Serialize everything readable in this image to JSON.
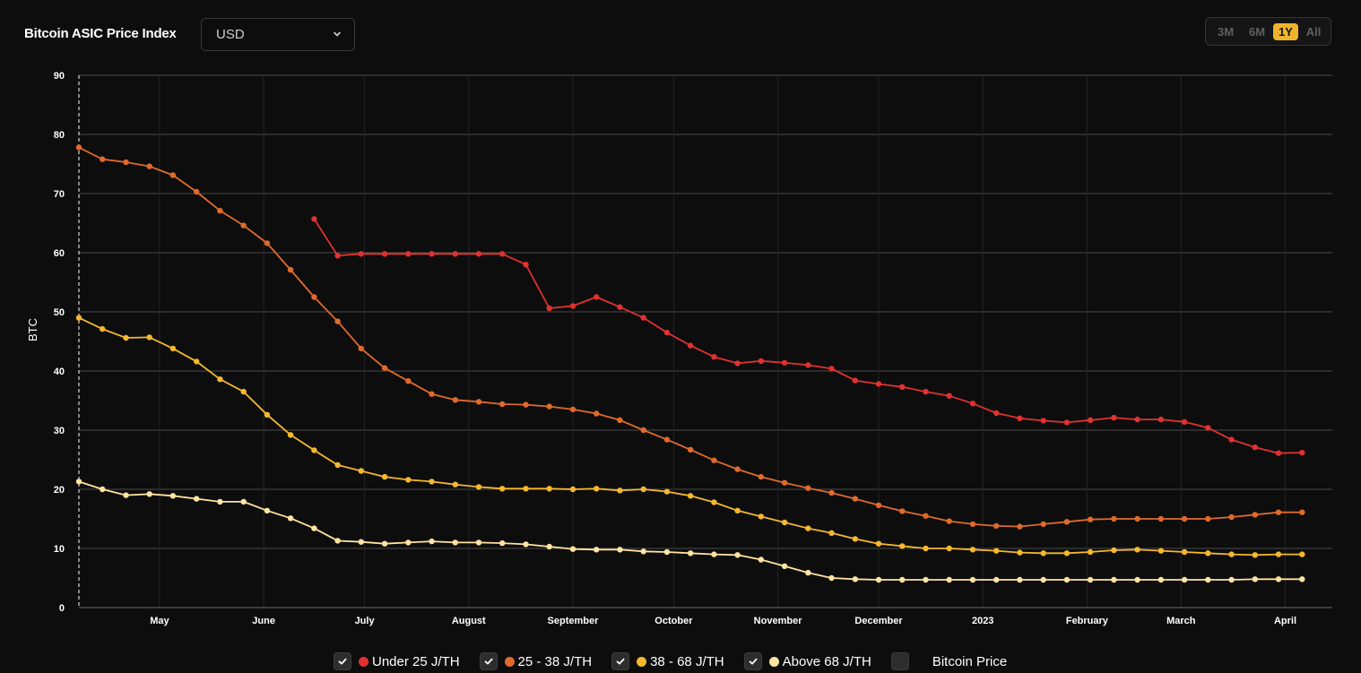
{
  "header": {
    "title": "Bitcoin ASIC Price Index",
    "currency": "USD"
  },
  "time_ranges": [
    {
      "label": "3M",
      "active": false
    },
    {
      "label": "6M",
      "active": false
    },
    {
      "label": "1Y",
      "active": true
    },
    {
      "label": "All",
      "active": false
    }
  ],
  "icons": {
    "currency_dropdown": "chevron-down-icon",
    "legend_checkbox": "checkmark-icon"
  },
  "colors": {
    "accent": "#f0b32b",
    "background": "#0d0d0d"
  },
  "legend": [
    {
      "label": "Under 25 J/TH",
      "color": "#e03131",
      "checked": true
    },
    {
      "label": "25 - 38 J/TH",
      "color": "#e06a2c",
      "checked": true
    },
    {
      "label": "38 - 68 J/TH",
      "color": "#f5b82e",
      "checked": true
    },
    {
      "label": "Above 68 J/TH",
      "color": "#ffe3a0",
      "checked": true
    },
    {
      "label": "Bitcoin Price",
      "color": "",
      "checked": false
    }
  ],
  "chart_data": {
    "type": "line",
    "ylabel": "BTC",
    "ylim": [
      0,
      90
    ],
    "yticks": [
      0,
      10,
      20,
      30,
      40,
      50,
      60,
      70,
      80,
      90
    ],
    "xlim": [
      "2022-04-07",
      "2023-04-15"
    ],
    "xticks": [
      {
        "label": "May",
        "date": "2022-05-01"
      },
      {
        "label": "June",
        "date": "2022-06-01"
      },
      {
        "label": "July",
        "date": "2022-07-01"
      },
      {
        "label": "August",
        "date": "2022-08-01"
      },
      {
        "label": "September",
        "date": "2022-09-01"
      },
      {
        "label": "October",
        "date": "2022-10-01"
      },
      {
        "label": "November",
        "date": "2022-11-01"
      },
      {
        "label": "December",
        "date": "2022-12-01"
      },
      {
        "label": "2023",
        "date": "2023-01-01"
      },
      {
        "label": "February",
        "date": "2023-02-01"
      },
      {
        "label": "March",
        "date": "2023-03-01"
      },
      {
        "label": "April",
        "date": "2023-04-01"
      }
    ],
    "grid": true,
    "legend_position": "bottom",
    "x": [
      "2022-04-07",
      "2022-04-14",
      "2022-04-21",
      "2022-04-28",
      "2022-05-05",
      "2022-05-12",
      "2022-05-19",
      "2022-05-26",
      "2022-06-02",
      "2022-06-09",
      "2022-06-16",
      "2022-06-23",
      "2022-06-30",
      "2022-07-07",
      "2022-07-14",
      "2022-07-21",
      "2022-07-28",
      "2022-08-04",
      "2022-08-11",
      "2022-08-18",
      "2022-08-25",
      "2022-09-01",
      "2022-09-08",
      "2022-09-15",
      "2022-09-22",
      "2022-09-29",
      "2022-10-06",
      "2022-10-13",
      "2022-10-20",
      "2022-10-27",
      "2022-11-03",
      "2022-11-10",
      "2022-11-17",
      "2022-11-24",
      "2022-12-01",
      "2022-12-08",
      "2022-12-15",
      "2022-12-22",
      "2022-12-29",
      "2023-01-05",
      "2023-01-12",
      "2023-01-19",
      "2023-01-26",
      "2023-02-02",
      "2023-02-09",
      "2023-02-16",
      "2023-02-23",
      "2023-03-02",
      "2023-03-09",
      "2023-03-16",
      "2023-03-23",
      "2023-03-30",
      "2023-04-06",
      "2023-04-13"
    ],
    "series": [
      {
        "name": "Under 25 J/TH",
        "color": "#e03131",
        "values": [
          null,
          null,
          null,
          null,
          null,
          null,
          null,
          null,
          null,
          null,
          65.7,
          59.5,
          59.8,
          59.8,
          59.8,
          59.8,
          59.8,
          59.8,
          59.8,
          58.0,
          50.6,
          51.0,
          52.5,
          50.8,
          49.0,
          46.5,
          44.3,
          42.4,
          41.3,
          41.7,
          41.4,
          41.0,
          40.4,
          38.4,
          37.8,
          37.3,
          36.5,
          35.8,
          34.5,
          32.9,
          32.0,
          31.6,
          31.3,
          31.7,
          32.1,
          31.8,
          31.8,
          31.4,
          30.4,
          28.4,
          27.1,
          26.1,
          26.2,
          null
        ]
      },
      {
        "name": "25 - 38 J/TH",
        "color": "#e06a2c",
        "values": [
          77.8,
          75.8,
          75.3,
          74.6,
          73.1,
          70.3,
          67.1,
          64.6,
          61.6,
          57.1,
          52.5,
          48.4,
          43.8,
          40.5,
          38.3,
          36.1,
          35.1,
          34.8,
          34.4,
          34.3,
          34.0,
          33.5,
          32.8,
          31.7,
          30.0,
          28.4,
          26.7,
          24.9,
          23.4,
          22.1,
          21.1,
          20.2,
          19.4,
          18.4,
          17.3,
          16.3,
          15.5,
          14.6,
          14.1,
          13.8,
          13.7,
          14.1,
          14.5,
          14.9,
          15.0,
          15.0,
          15.0,
          15.0,
          15.0,
          15.3,
          15.7,
          16.1,
          16.1,
          null
        ]
      },
      {
        "name": "38 - 68 J/TH",
        "color": "#f5b82e",
        "values": [
          49.0,
          47.1,
          45.6,
          45.7,
          43.8,
          41.6,
          38.6,
          36.5,
          32.6,
          29.2,
          26.6,
          24.1,
          23.1,
          22.1,
          21.6,
          21.3,
          20.8,
          20.4,
          20.1,
          20.1,
          20.1,
          20.0,
          20.1,
          19.8,
          20.0,
          19.6,
          18.9,
          17.8,
          16.4,
          15.4,
          14.4,
          13.4,
          12.6,
          11.6,
          10.8,
          10.4,
          10.0,
          10.0,
          9.8,
          9.6,
          9.3,
          9.2,
          9.2,
          9.4,
          9.7,
          9.8,
          9.6,
          9.4,
          9.2,
          9.0,
          8.9,
          9.0,
          9.0,
          null
        ]
      },
      {
        "name": "Above 68 J/TH",
        "color": "#ffe3a0",
        "values": [
          21.3,
          20.0,
          19.0,
          19.2,
          18.9,
          18.4,
          17.9,
          17.9,
          16.4,
          15.1,
          13.4,
          11.3,
          11.1,
          10.8,
          11.0,
          11.2,
          11.0,
          11.0,
          10.9,
          10.7,
          10.3,
          9.9,
          9.8,
          9.8,
          9.5,
          9.4,
          9.2,
          9.0,
          8.9,
          8.1,
          7.0,
          5.9,
          5.0,
          4.8,
          4.7,
          4.7,
          4.7,
          4.7,
          4.7,
          4.7,
          4.7,
          4.7,
          4.7,
          4.7,
          4.7,
          4.7,
          4.7,
          4.7,
          4.7,
          4.7,
          4.8,
          4.8,
          4.8,
          null
        ]
      }
    ]
  }
}
